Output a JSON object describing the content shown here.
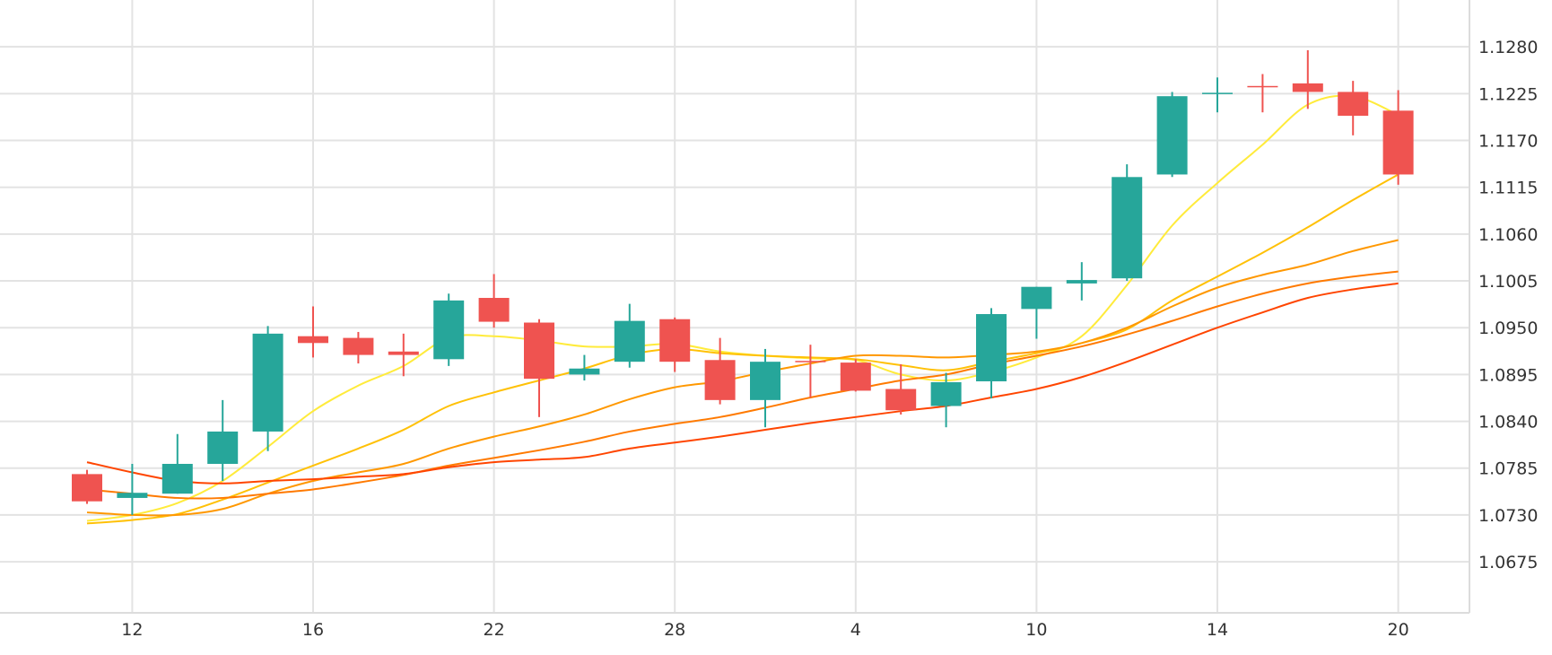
{
  "chart_data": {
    "type": "candlestick",
    "xlabel": "",
    "ylabel": "",
    "ylim": [
      1.0615,
      1.1335
    ],
    "y_ticks": [
      "1.1280",
      "1.1225",
      "1.1170",
      "1.1115",
      "1.1060",
      "1.1005",
      "1.0950",
      "1.0895",
      "1.0840",
      "1.0785",
      "1.0730",
      "1.0675"
    ],
    "x_ticks": [
      "12",
      "16",
      "22",
      "28",
      "4",
      "10",
      "14",
      "20"
    ],
    "grid": true,
    "legend": "none",
    "colors": {
      "up": "#26a69a",
      "down": "#ef5350",
      "ma1": "#ffeb3b",
      "ma2": "#ffc107",
      "ma3": "#ff9800",
      "ma4": "#ff7a00",
      "ma5": "#ff4500"
    },
    "candles": [
      {
        "open": 1.0778,
        "high": 1.0783,
        "low": 1.0743,
        "close": 1.0746
      },
      {
        "open": 1.075,
        "high": 1.079,
        "low": 1.073,
        "close": 1.0756
      },
      {
        "open": 1.0755,
        "high": 1.0825,
        "low": 1.0755,
        "close": 1.079
      },
      {
        "open": 1.079,
        "high": 1.0865,
        "low": 1.077,
        "close": 1.0828
      },
      {
        "open": 1.0828,
        "high": 1.0952,
        "low": 1.0805,
        "close": 1.0943
      },
      {
        "open": 1.094,
        "high": 1.0975,
        "low": 1.0915,
        "close": 1.0932
      },
      {
        "open": 1.0938,
        "high": 1.0945,
        "low": 1.0908,
        "close": 1.0918
      },
      {
        "open": 1.0922,
        "high": 1.0943,
        "low": 1.0893,
        "close": 1.0918
      },
      {
        "open": 1.0913,
        "high": 1.099,
        "low": 1.0905,
        "close": 1.0982
      },
      {
        "open": 1.0985,
        "high": 1.1013,
        "low": 1.095,
        "close": 1.0957
      },
      {
        "open": 1.0956,
        "high": 1.096,
        "low": 1.0845,
        "close": 1.089
      },
      {
        "open": 1.0895,
        "high": 1.0918,
        "low": 1.0888,
        "close": 1.0902
      },
      {
        "open": 1.091,
        "high": 1.0978,
        "low": 1.0903,
        "close": 1.0958
      },
      {
        "open": 1.096,
        "high": 1.0962,
        "low": 1.0898,
        "close": 1.091
      },
      {
        "open": 1.0912,
        "high": 1.0938,
        "low": 1.086,
        "close": 1.0865
      },
      {
        "open": 1.0865,
        "high": 1.0925,
        "low": 1.0833,
        "close": 1.091
      },
      {
        "open": 1.0911,
        "high": 1.093,
        "low": 1.0868,
        "close": 1.091
      },
      {
        "open": 1.0909,
        "high": 1.0913,
        "low": 1.0875,
        "close": 1.0876
      },
      {
        "open": 1.0878,
        "high": 1.0907,
        "low": 1.0848,
        "close": 1.0853
      },
      {
        "open": 1.0858,
        "high": 1.0897,
        "low": 1.0833,
        "close": 1.0886
      },
      {
        "open": 1.0887,
        "high": 1.0973,
        "low": 1.0867,
        "close": 1.0966
      },
      {
        "open": 1.0972,
        "high": 1.0998,
        "low": 1.0937,
        "close": 1.0998
      },
      {
        "open": 1.1002,
        "high": 1.1027,
        "low": 1.0982,
        "close": 1.1006
      },
      {
        "open": 1.1008,
        "high": 1.1142,
        "low": 1.1005,
        "close": 1.1127
      },
      {
        "open": 1.113,
        "high": 1.1227,
        "low": 1.1127,
        "close": 1.1222
      },
      {
        "open": 1.1225,
        "high": 1.1244,
        "low": 1.1203,
        "close": 1.1226
      },
      {
        "open": 1.1234,
        "high": 1.1248,
        "low": 1.1203,
        "close": 1.1233
      },
      {
        "open": 1.1237,
        "high": 1.1276,
        "low": 1.1207,
        "close": 1.1227
      },
      {
        "open": 1.1227,
        "high": 1.124,
        "low": 1.1176,
        "close": 1.1199
      },
      {
        "open": 1.1205,
        "high": 1.1229,
        "low": 1.1118,
        "close": 1.113
      }
    ],
    "moving_averages": [
      {
        "color_key": "ma1",
        "values": [
          1.0723,
          1.073,
          1.0744,
          1.077,
          1.081,
          1.0852,
          1.0882,
          1.0905,
          1.0938,
          1.094,
          1.0935,
          1.0928,
          1.0928,
          1.0931,
          1.0922,
          1.0917,
          1.0914,
          1.0912,
          1.0895,
          1.0888,
          1.0898,
          1.0915,
          1.094,
          1.1,
          1.107,
          1.112,
          1.1165,
          1.1212,
          1.1222,
          1.12
        ]
      },
      {
        "color_key": "ma2",
        "values": [
          1.072,
          1.0724,
          1.0731,
          1.0748,
          1.0768,
          1.0788,
          1.0808,
          1.083,
          1.0858,
          1.0874,
          1.0888,
          1.0902,
          1.0918,
          1.0925,
          1.092,
          1.0917,
          1.0915,
          1.0913,
          1.0906,
          1.09,
          1.091,
          1.092,
          1.0932,
          1.0948,
          1.0982,
          1.101,
          1.1038,
          1.1068,
          1.11,
          1.113
        ]
      },
      {
        "color_key": "ma3",
        "values": [
          1.0733,
          1.073,
          1.073,
          1.0737,
          1.0755,
          1.077,
          1.078,
          1.079,
          1.0808,
          1.0822,
          1.0834,
          1.0848,
          1.0866,
          1.088,
          1.0887,
          1.0898,
          1.0908,
          1.0917,
          1.0917,
          1.0915,
          1.0918,
          1.0922,
          1.0932,
          1.095,
          1.0975,
          1.0997,
          1.1012,
          1.1024,
          1.104,
          1.1053
        ]
      },
      {
        "color_key": "ma4",
        "values": [
          1.076,
          1.0755,
          1.075,
          1.075,
          1.0755,
          1.076,
          1.0768,
          1.0777,
          1.0788,
          1.0797,
          1.0806,
          1.0816,
          1.0828,
          1.0837,
          1.0845,
          1.0856,
          1.0868,
          1.0878,
          1.0888,
          1.0895,
          1.0907,
          1.0917,
          1.0928,
          1.0942,
          1.0958,
          1.0975,
          1.099,
          1.1002,
          1.101,
          1.1016
        ]
      },
      {
        "color_key": "ma5",
        "values": [
          1.0792,
          1.078,
          1.077,
          1.0767,
          1.077,
          1.0772,
          1.0775,
          1.0778,
          1.0786,
          1.0792,
          1.0795,
          1.0798,
          1.0808,
          1.0815,
          1.0822,
          1.083,
          1.0838,
          1.0845,
          1.0852,
          1.0858,
          1.0868,
          1.0878,
          1.0892,
          1.091,
          1.093,
          1.095,
          1.0968,
          1.0985,
          1.0995,
          1.1002
        ]
      }
    ]
  }
}
